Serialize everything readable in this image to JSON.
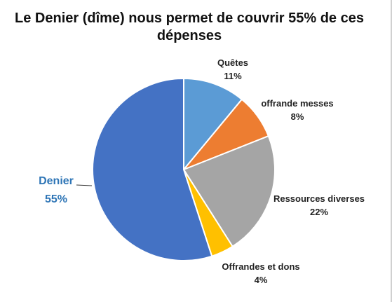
{
  "chart_data": {
    "type": "pie",
    "title": "Le Denier (dîme) nous permet de couvrir 55% de ces dépenses",
    "title_line1": "Le Denier (dîme) nous permet de couvrir 55% de ces",
    "title_line2": "dépenses",
    "slices": [
      {
        "name": "Quêtes",
        "value": 11,
        "label": "11%",
        "color": "#5B9BD5"
      },
      {
        "name": "offrande messes",
        "value": 8,
        "label": "8%",
        "color": "#ED7D31"
      },
      {
        "name": "Ressources diverses",
        "value": 22,
        "label": "22%",
        "color": "#A5A5A5"
      },
      {
        "name": "Offrandes et dons",
        "value": 4,
        "label": "4%",
        "color": "#FFC000"
      },
      {
        "name": "Denier",
        "value": 55,
        "label": "55%",
        "color": "#4472C4"
      }
    ],
    "highlight_label_color": "#2E75B6",
    "legend": "none"
  }
}
